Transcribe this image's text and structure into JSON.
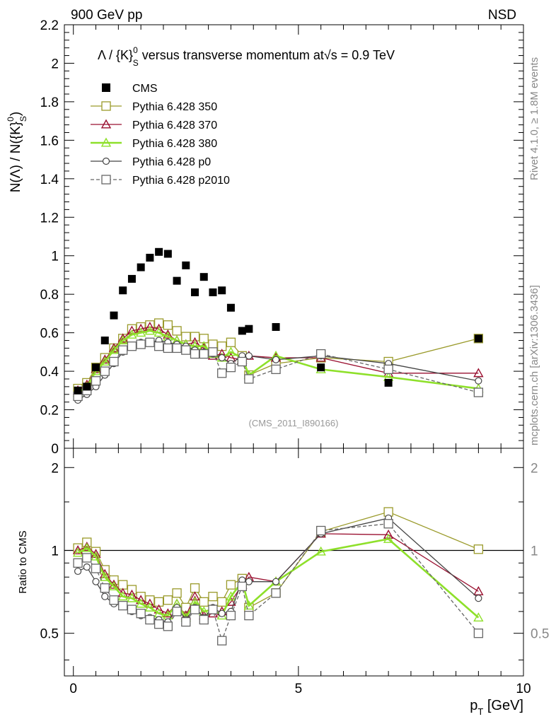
{
  "header": {
    "left": "900 GeV pp",
    "right": "NSD",
    "plot_title": "Λ / {K}⁰ₛ versus transverse momentum at√s = 0.9 TeV",
    "title_main": "Λ / {K}",
    "title_sup": "0",
    "title_sub": "S",
    "title_rest": " versus transverse momentum at",
    "title_sqrt": "√s",
    "title_end": " = 0.9 TeV"
  },
  "side_labels": {
    "rivet": "Rivet 4.1.0, ≥ 1.8M events",
    "mcplots": "mcplots.cern.ch [arXiv:1306.3436]"
  },
  "analysis_id": "(CMS_2011_I890166)",
  "colors": {
    "cms": "#000000",
    "p350": "#9a9a2a",
    "p370": "#9a1030",
    "p380": "#8ee02a",
    "p0": "#444444",
    "p2010": "#666666",
    "ref_line": "#000000"
  },
  "chart_data": [
    {
      "type": "line",
      "panel": "main",
      "ylabel": "N(Λ)  /  N({K}⁰ₛ)",
      "ylabel_main": "N(Λ)  /  N({K}",
      "ylabel_sup": "0",
      "ylabel_sub": "S",
      "ylabel_close": ")",
      "xlim": [
        -0.2,
        10.0
      ],
      "ylim": [
        0,
        2.2
      ],
      "yticks": [
        0,
        0.2,
        0.4,
        0.6,
        0.8,
        1,
        1.2,
        1.4,
        1.6,
        1.8,
        2,
        2.2
      ],
      "ytick_labels": [
        "0",
        "0.2",
        "0.4",
        "0.6",
        "0.8",
        "1",
        "1.2",
        "1.4",
        "1.6",
        "1.8",
        "2",
        "2.2"
      ],
      "x": [
        0.1,
        0.3,
        0.5,
        0.7,
        0.9,
        1.1,
        1.3,
        1.5,
        1.7,
        1.9,
        2.1,
        2.3,
        2.5,
        2.7,
        2.9,
        3.1,
        3.3,
        3.5,
        3.75,
        3.9,
        4.5,
        5.5,
        7.0,
        9.0
      ],
      "series": [
        {
          "name": "CMS",
          "key": "cms",
          "marker": "filled-square",
          "line": "none",
          "values": [
            0.3,
            0.32,
            0.42,
            0.56,
            0.69,
            0.82,
            0.88,
            0.94,
            0.99,
            1.02,
            1.01,
            0.87,
            0.95,
            0.81,
            0.89,
            0.81,
            0.82,
            0.73,
            0.61,
            0.62,
            0.63,
            0.42,
            0.34,
            0.57
          ]
        },
        {
          "name": "Pythia 6.428 350",
          "key": "p350",
          "marker": "open-square",
          "line": "solid",
          "values": [
            0.31,
            0.34,
            0.42,
            0.47,
            0.52,
            0.57,
            0.62,
            0.63,
            0.64,
            0.65,
            0.64,
            0.61,
            0.58,
            0.58,
            0.57,
            0.54,
            0.53,
            0.55,
            0.48,
            0.38,
            0.44,
            0.47,
            0.45,
            0.57
          ]
        },
        {
          "name": "Pythia 6.428 370",
          "key": "p370",
          "marker": "open-triangle",
          "line": "solid",
          "values": [
            0.3,
            0.33,
            0.41,
            0.46,
            0.52,
            0.57,
            0.61,
            0.62,
            0.63,
            0.62,
            0.59,
            0.56,
            0.54,
            0.55,
            0.52,
            0.48,
            0.49,
            0.47,
            0.46,
            0.48,
            0.47,
            0.47,
            0.39,
            0.39
          ]
        },
        {
          "name": "Pythia 6.428 380",
          "key": "p380",
          "marker": "open-triangle",
          "line": "solid-thick",
          "values": [
            0.29,
            0.32,
            0.4,
            0.45,
            0.51,
            0.56,
            0.59,
            0.6,
            0.61,
            0.6,
            0.58,
            0.56,
            0.54,
            0.53,
            0.53,
            0.49,
            0.47,
            0.5,
            0.47,
            0.38,
            0.48,
            0.41,
            0.37,
            0.31
          ]
        },
        {
          "name": "Pythia 6.428 p0",
          "key": "p0",
          "marker": "open-circle",
          "line": "solid",
          "values": [
            0.25,
            0.28,
            0.32,
            0.38,
            0.44,
            0.5,
            0.53,
            0.55,
            0.55,
            0.56,
            0.55,
            0.54,
            0.53,
            0.51,
            0.5,
            0.49,
            0.47,
            0.44,
            0.48,
            0.48,
            0.46,
            0.48,
            0.44,
            0.35
          ]
        },
        {
          "name": "Pythia 6.428 p2010",
          "key": "p2010",
          "marker": "open-square",
          "line": "dashed",
          "values": [
            0.27,
            0.3,
            0.35,
            0.4,
            0.45,
            0.51,
            0.53,
            0.54,
            0.55,
            0.53,
            0.52,
            0.52,
            0.51,
            0.49,
            0.49,
            0.5,
            0.39,
            0.42,
            0.45,
            0.36,
            0.41,
            0.49,
            0.41,
            0.29
          ]
        }
      ],
      "legend": [
        "CMS",
        "Pythia 6.428 350",
        "Pythia 6.428 370",
        "Pythia 6.428 380",
        "Pythia 6.428 p0",
        "Pythia 6.428 p2010"
      ]
    },
    {
      "type": "line",
      "panel": "ratio",
      "ylabel": "Ratio to CMS",
      "xlabel": "p_T [GeV]",
      "xlabel_main": "p",
      "xlabel_sub": "T",
      "xlabel_rest": " [GeV]",
      "xlim": [
        -0.2,
        10.0
      ],
      "ylim": [
        0.35,
        2.35
      ],
      "scale": "log",
      "yticks": [
        0.5,
        1,
        2
      ],
      "ytick_labels": [
        "0.5",
        "1",
        "2"
      ],
      "xticks": [
        0,
        5,
        10
      ],
      "xtick_labels": [
        "0",
        "5",
        "10"
      ],
      "x": [
        0.1,
        0.3,
        0.5,
        0.7,
        0.9,
        1.1,
        1.3,
        1.5,
        1.7,
        1.9,
        2.1,
        2.3,
        2.5,
        2.7,
        2.9,
        3.1,
        3.3,
        3.5,
        3.75,
        3.9,
        4.5,
        5.5,
        7.0,
        9.0
      ],
      "series": [
        {
          "name": "Pythia 6.428 350",
          "key": "p350",
          "values": [
            1.02,
            1.07,
            0.99,
            0.85,
            0.78,
            0.75,
            0.72,
            0.68,
            0.66,
            0.65,
            0.66,
            0.7,
            0.62,
            0.73,
            0.65,
            0.68,
            0.65,
            0.75,
            0.79,
            0.62,
            0.7,
            1.17,
            1.38,
            1.01
          ]
        },
        {
          "name": "Pythia 6.428 370",
          "key": "p370",
          "values": [
            1.0,
            1.03,
            0.97,
            0.82,
            0.75,
            0.7,
            0.69,
            0.66,
            0.64,
            0.61,
            0.59,
            0.64,
            0.58,
            0.68,
            0.58,
            0.59,
            0.6,
            0.65,
            0.75,
            0.8,
            0.77,
            1.15,
            1.14,
            0.71
          ]
        },
        {
          "name": "Pythia 6.428 380",
          "key": "p380",
          "values": [
            0.98,
            1.02,
            0.95,
            0.8,
            0.74,
            0.68,
            0.67,
            0.64,
            0.62,
            0.59,
            0.58,
            0.64,
            0.57,
            0.65,
            0.6,
            0.61,
            0.58,
            0.68,
            0.77,
            0.63,
            0.77,
            0.99,
            1.1,
            0.57
          ]
        },
        {
          "name": "Pythia 6.428 p0",
          "key": "p0",
          "values": [
            0.84,
            0.87,
            0.77,
            0.68,
            0.64,
            0.63,
            0.6,
            0.58,
            0.57,
            0.56,
            0.55,
            0.62,
            0.56,
            0.62,
            0.57,
            0.62,
            0.59,
            0.6,
            0.78,
            0.77,
            0.77,
            1.15,
            1.31,
            0.67
          ]
        },
        {
          "name": "Pythia 6.428 p2010",
          "key": "p2010",
          "values": [
            0.9,
            0.94,
            0.86,
            0.73,
            0.66,
            0.63,
            0.61,
            0.59,
            0.56,
            0.54,
            0.53,
            0.6,
            0.55,
            0.61,
            0.56,
            0.61,
            0.47,
            0.58,
            0.74,
            0.58,
            0.7,
            1.18,
            1.25,
            0.5
          ]
        }
      ]
    }
  ]
}
